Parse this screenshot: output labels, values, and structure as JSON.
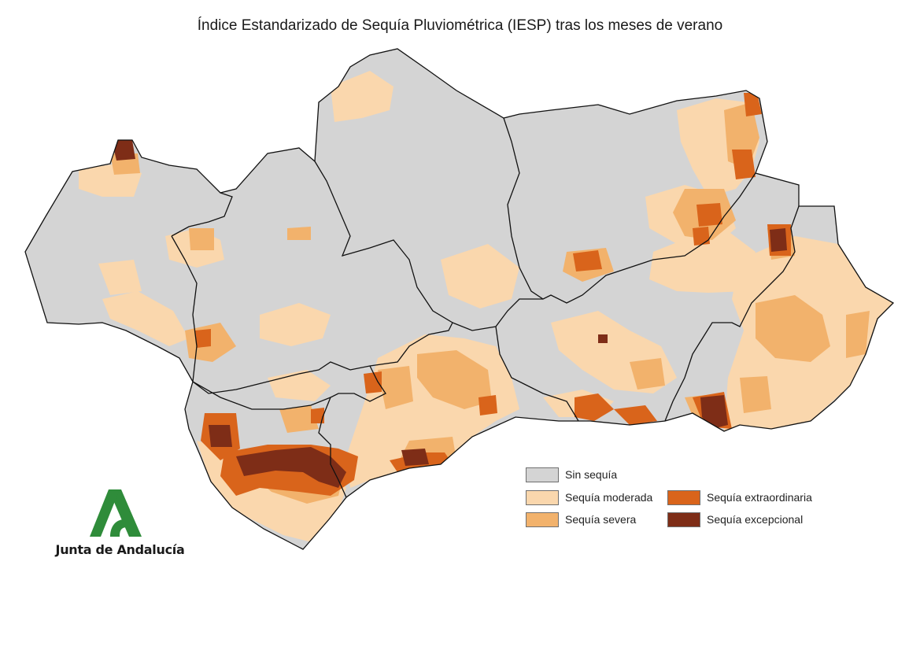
{
  "title": "Índice Estandarizado de Sequía Pluviométrica (IESP) tras los meses de verano",
  "legend": {
    "items": [
      {
        "label": "Sin sequía",
        "color": "#d4d4d4"
      },
      {
        "label": "Sequía moderada",
        "color": "#fad7ad"
      },
      {
        "label": "Sequía severa",
        "color": "#f2b26c"
      },
      {
        "label": "Sequía extraordinaria",
        "color": "#d9641b"
      },
      {
        "label": "Sequía excepcional",
        "color": "#7e2d17"
      }
    ]
  },
  "logo": {
    "text": "Junta de Andalucía",
    "color": "#2f8c3a"
  }
}
